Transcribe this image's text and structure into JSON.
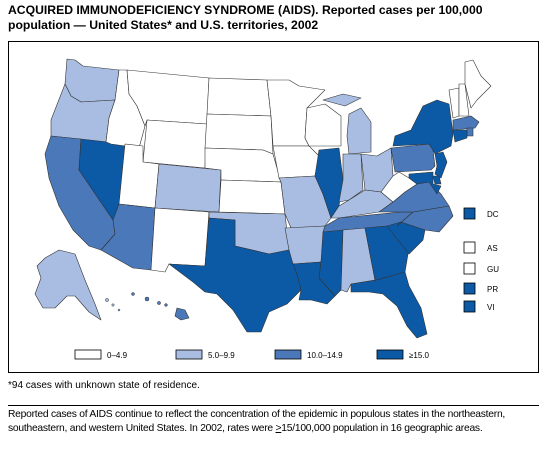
{
  "title": "ACQUIRED IMMUNODEFICIENCY SYNDROME (AIDS). Reported cases per 100,000 population — United States* and U.S. territories, 2002",
  "colors": {
    "c0": "#ffffff",
    "c1": "#a9bde3",
    "c2": "#4a78b9",
    "c3": "#0c5aa6"
  },
  "legend": {
    "items": [
      {
        "label": "0–4.9",
        "color": "c0"
      },
      {
        "label": "5.0–9.9",
        "color": "c1"
      },
      {
        "label": "10.0–14.9",
        "color": "c2"
      },
      {
        "label": "≥15.0",
        "color": "c3"
      }
    ]
  },
  "territories": [
    {
      "label": "DC",
      "color": "c3"
    },
    {
      "label": "AS",
      "color": "c0"
    },
    {
      "label": "GU",
      "color": "c0"
    },
    {
      "label": "PR",
      "color": "c3"
    },
    {
      "label": "VI",
      "color": "c3"
    }
  ],
  "states": {
    "WA": "c1",
    "OR": "c1",
    "CA": "c2",
    "NV": "c3",
    "ID": "c0",
    "MT": "c0",
    "WY": "c0",
    "UT": "c0",
    "AZ": "c2",
    "CO": "c1",
    "NM": "c0",
    "ND": "c0",
    "SD": "c0",
    "NE": "c0",
    "KS": "c0",
    "OK": "c1",
    "TX": "c3",
    "MN": "c0",
    "IA": "c0",
    "MO": "c1",
    "AR": "c1",
    "LA": "c3",
    "WI": "c0",
    "IL": "c3",
    "MI": "c1",
    "IN": "c1",
    "OH": "c1",
    "KY": "c1",
    "TN": "c2",
    "MS": "c3",
    "AL": "c1",
    "GA": "c3",
    "FL": "c3",
    "SC": "c3",
    "NC": "c2",
    "VA": "c2",
    "WV": "c0",
    "PA": "c2",
    "NY": "c3",
    "VT": "c0",
    "NH": "c0",
    "ME": "c0",
    "MA": "c2",
    "RI": "c2",
    "CT": "c3",
    "NJ": "c3",
    "DE": "c3",
    "MD": "c3",
    "AK": "c1",
    "HI": "c2"
  },
  "footnote": "*94 cases with unknown state of residence.",
  "note": {
    "before": "Reported cases of AIDS continue to reflect the concentration of the epidemic in populous states in the northeastern, southeastern, and western United States. In 2002, rates were ",
    "underlined": ">",
    "after": "15/100,000 population in 16 geographic areas."
  }
}
